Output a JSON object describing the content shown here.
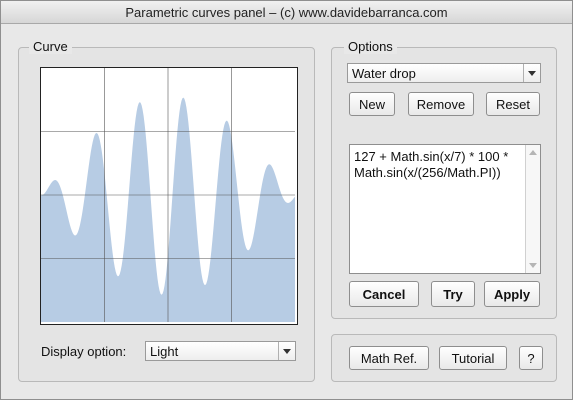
{
  "window": {
    "title": "Parametric curves panel – (c) www.davidebarranca.com"
  },
  "curve_group": {
    "legend": "Curve",
    "display_label": "Display option:",
    "display_value": "Light",
    "fill_color": "#b7cce4",
    "grid_color": "#555555"
  },
  "options_group": {
    "legend": "Options",
    "preset_value": "Water drop",
    "new_label": "New",
    "remove_label": "Remove",
    "reset_label": "Reset",
    "expression": "127 + Math.sin(x/7) * 100 *\nMath.sin(x/(256/Math.PI))",
    "cancel_label": "Cancel",
    "try_label": "Try",
    "apply_label": "Apply"
  },
  "bottom_group": {
    "math_ref_label": "Math Ref.",
    "tutorial_label": "Tutorial",
    "help_label": "?"
  }
}
